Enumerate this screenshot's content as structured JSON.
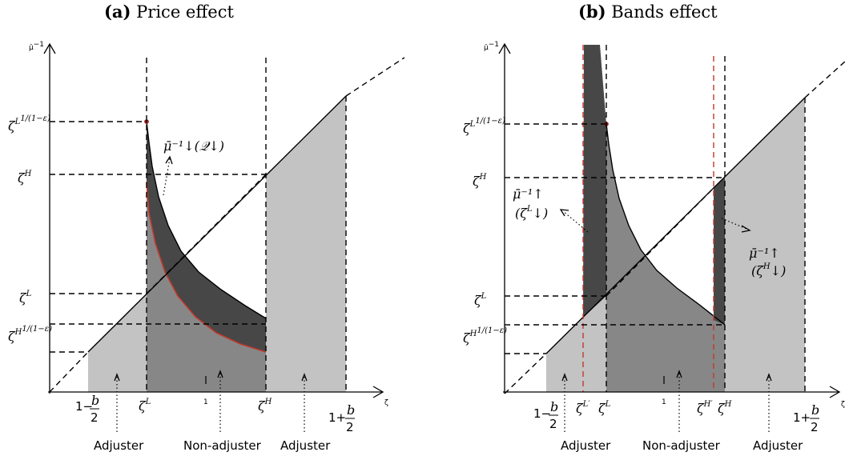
{
  "colors": {
    "light_region": "#c3c3c3",
    "mid_region": "#878787",
    "dark_region": "#474747",
    "red_curve": "#c0392b",
    "axis": "#000000"
  },
  "panels": [
    {
      "tag": "(a)",
      "title": "Price effect",
      "y_axis_label": "μ̄",
      "y_axis_label_sup": "−1",
      "x_axis_label": "ζ",
      "y_ticks": [
        {
          "base": "ζ",
          "sup": "L",
          "frac": "1/(1−ε)"
        },
        {
          "base": "ζ",
          "sup": "H",
          "frac": ""
        },
        {
          "base": "ζ",
          "sup": "L",
          "frac": ""
        },
        {
          "base": "ζ",
          "sup": "H",
          "frac": "1/(1−ε)"
        }
      ],
      "x_ticks": [
        "1−b/2",
        "ζL",
        "1",
        "ζH",
        "1+b/2"
      ],
      "annotation": "μ̄⁻¹↓(𝒬↓)",
      "region_labels": [
        "Adjuster",
        "Non-adjuster",
        "Adjuster"
      ]
    },
    {
      "tag": "(b)",
      "title": "Bands effect",
      "y_axis_label": "μ̄",
      "y_axis_label_sup": "−1",
      "x_axis_label": "ζ",
      "y_ticks": [
        {
          "base": "ζ",
          "sup": "L",
          "frac": "1/(1−ε)"
        },
        {
          "base": "ζ",
          "sup": "H",
          "frac": ""
        },
        {
          "base": "ζ",
          "sup": "L",
          "frac": ""
        },
        {
          "base": "ζ",
          "sup": "H",
          "frac": "1/(1−ε)"
        }
      ],
      "x_ticks": [
        "1−b/2",
        "ζL′",
        "ζL",
        "1",
        "ζH′",
        "ζH",
        "1+b/2"
      ],
      "annotations": [
        "μ̄⁻¹↑ (ζL↓)",
        "μ̄⁻¹↑ (ζH↓)"
      ],
      "region_labels": [
        "Adjuster",
        "Non-adjuster",
        "Adjuster"
      ]
    }
  ]
}
